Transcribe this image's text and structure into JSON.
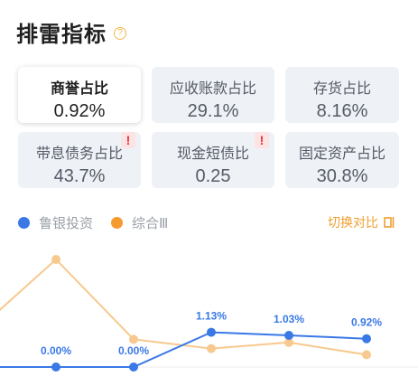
{
  "header": {
    "title": "排雷指标",
    "help_icon": "?"
  },
  "cards": [
    {
      "label": "商誉占比",
      "value": "0.92%",
      "active": true,
      "warning": false
    },
    {
      "label": "应收账款占比",
      "value": "29.1%",
      "active": false,
      "warning": false
    },
    {
      "label": "存货占比",
      "value": "8.16%",
      "active": false,
      "warning": false
    },
    {
      "label": "带息债务占比",
      "value": "43.7%",
      "active": false,
      "warning": true
    },
    {
      "label": "现金短债比",
      "value": "0.25",
      "active": false,
      "warning": true
    },
    {
      "label": "固定资产占比",
      "value": "30.8%",
      "active": false,
      "warning": false
    }
  ],
  "warning_glyph": "!",
  "legend": [
    {
      "name": "鲁银投资",
      "color": "#3a78e6"
    },
    {
      "name": "综合Ⅲ",
      "color": "#f59a2e"
    }
  ],
  "switch": {
    "label": "切换对比"
  },
  "colors": {
    "primary": "#3a78e6",
    "secondary_line": "#f7c98f",
    "accent": "#f0a030",
    "warning": "#e0393e"
  },
  "chart_data": {
    "type": "line",
    "ylim": [
      0,
      4
    ],
    "series": [
      {
        "name": "综合Ⅲ",
        "values": [
          3.5,
          0.9,
          0.6,
          0.8,
          0.4
        ]
      },
      {
        "name": "鲁银投资",
        "values": [
          0,
          0,
          1.13,
          1.03,
          0.92
        ]
      }
    ],
    "data_labels": [
      "0.00%",
      "0.00%",
      "1.13%",
      "1.03%",
      "0.92%"
    ]
  }
}
